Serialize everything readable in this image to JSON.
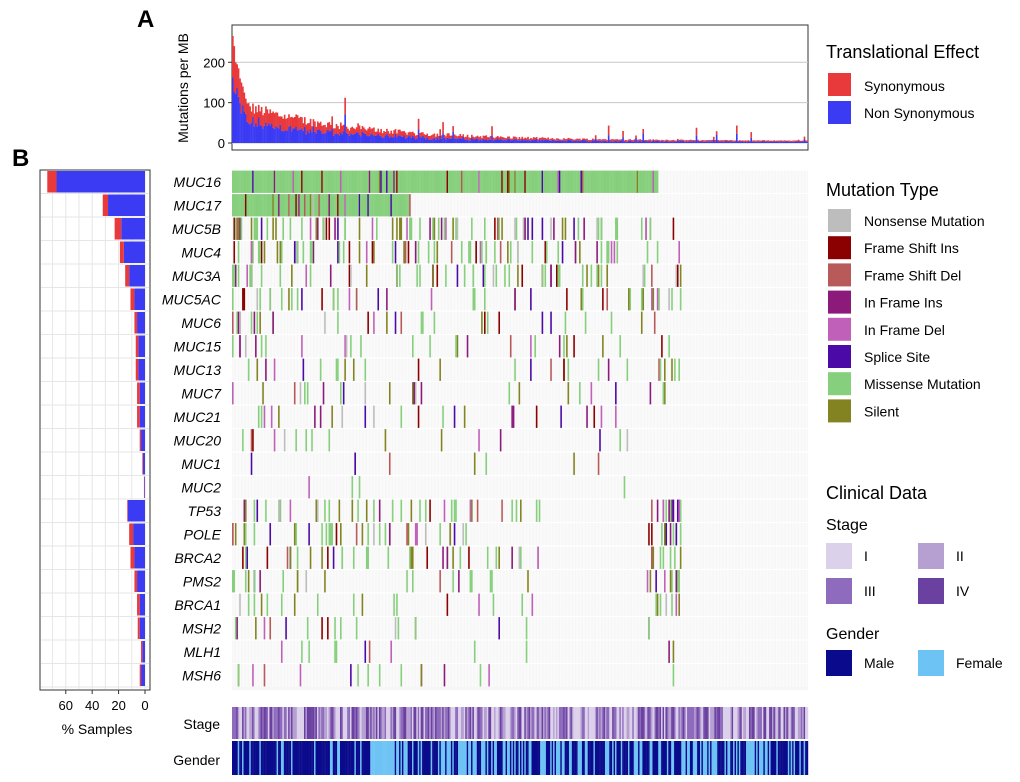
{
  "panels": {
    "a": "A",
    "b": "B"
  },
  "colors": {
    "synonymous": "#e8393b",
    "non_synonymous": "#3b3bf3",
    "nonsense": "#bdbdbd",
    "frame_shift_ins": "#8b0000",
    "frame_shift_del": "#b85a5a",
    "in_frame_ins": "#8b1a7a",
    "in_frame_del": "#c060b8",
    "splice_site": "#4b0aa8",
    "missense": "#86cf7c",
    "silent": "#838321",
    "stage_i": "#dcd1ea",
    "stage_ii": "#b6a0d2",
    "stage_iii": "#8e6bbd",
    "stage_iv": "#6a40a0",
    "male": "#0a0a8c",
    "female": "#6ec3f5",
    "grid": "#e6e6e6"
  },
  "chart_data": [
    {
      "type": "bar",
      "name": "mutation-burden",
      "title": "",
      "ylabel": "Mutations per MB",
      "ylim": [
        0,
        280
      ],
      "yticks": [
        "0",
        "100",
        "200"
      ],
      "ytick_values": [
        0,
        100,
        200
      ],
      "legend_title": "Translational Effect",
      "series": [
        {
          "name": "Synonymous",
          "color_key": "synonymous"
        },
        {
          "name": "Non Synonymous",
          "color_key": "non_synonymous"
        }
      ],
      "samples_note": "approx. 400 samples sorted by decreasing burden; top values ~265, ~240, ~200, ~195 then decaying to ~5",
      "peak_values": [
        265,
        240,
        200,
        195,
        185,
        160,
        150,
        140,
        125,
        110
      ],
      "tail_value": 5
    },
    {
      "type": "bar",
      "name": "percent-samples",
      "orientation": "horizontal",
      "xlabel": "% Samples",
      "xticks": [
        "60",
        "40",
        "20",
        "0"
      ],
      "xtick_values": [
        60,
        40,
        20,
        0
      ],
      "xlim": [
        0,
        78
      ],
      "genes": [
        "MUC16",
        "MUC17",
        "MUC5B",
        "MUC4",
        "MUC3A",
        "MUC5AC",
        "MUC6",
        "MUC15",
        "MUC13",
        "MUC7",
        "MUC21",
        "MUC20",
        "MUC1",
        "MUC2",
        "TP53",
        "POLE",
        "BRCA2",
        "PMS2",
        "BRCA1",
        "MSH2",
        "MLH1",
        "MSH6"
      ],
      "synonymous_pct": [
        7,
        4,
        5,
        3,
        3,
        3,
        2,
        2,
        2,
        2,
        2,
        1,
        0.5,
        0.3,
        0.5,
        3,
        3,
        2,
        2,
        1.5,
        1,
        1
      ],
      "non_synonymous_pct": [
        67,
        28,
        18,
        16,
        12,
        8,
        6,
        5,
        5,
        4,
        4,
        3,
        1.5,
        0.5,
        13,
        9,
        8,
        6,
        4,
        4,
        2,
        3
      ]
    },
    {
      "type": "heatmap",
      "name": "oncoprint",
      "genes": [
        "MUC16",
        "MUC17",
        "MUC5B",
        "MUC4",
        "MUC3A",
        "MUC5AC",
        "MUC6",
        "MUC15",
        "MUC13",
        "MUC7",
        "MUC21",
        "MUC20",
        "MUC1",
        "MUC2",
        "TP53",
        "POLE",
        "BRCA2",
        "PMS2",
        "BRCA1",
        "MSH2",
        "MLH1",
        "MSH6"
      ],
      "mutated_fraction": [
        0.74,
        0.31,
        0.22,
        0.19,
        0.15,
        0.11,
        0.08,
        0.07,
        0.07,
        0.06,
        0.06,
        0.04,
        0.02,
        0.01,
        0.13,
        0.12,
        0.11,
        0.08,
        0.06,
        0.05,
        0.03,
        0.04
      ],
      "legend_title": "Mutation Type",
      "categories": [
        {
          "name": "Nonsense Mutation",
          "color_key": "nonsense"
        },
        {
          "name": "Frame Shift Ins",
          "color_key": "frame_shift_ins"
        },
        {
          "name": "Frame Shift Del",
          "color_key": "frame_shift_del"
        },
        {
          "name": "In Frame Ins",
          "color_key": "in_frame_ins"
        },
        {
          "name": "In Frame Del",
          "color_key": "in_frame_del"
        },
        {
          "name": "Splice Site",
          "color_key": "splice_site"
        },
        {
          "name": "Missense Mutation",
          "color_key": "missense"
        },
        {
          "name": "Silent",
          "color_key": "silent"
        }
      ]
    },
    {
      "type": "heatmap",
      "name": "clinical-tracks",
      "tracks": [
        "Stage",
        "Gender"
      ],
      "legend_title": "Clinical Data",
      "stage_title": "Stage",
      "stage_levels": [
        {
          "name": "I",
          "color_key": "stage_i"
        },
        {
          "name": "II",
          "color_key": "stage_ii"
        },
        {
          "name": "III",
          "color_key": "stage_iii"
        },
        {
          "name": "IV",
          "color_key": "stage_iv"
        }
      ],
      "gender_title": "Gender",
      "gender_levels": [
        {
          "name": "Male",
          "color_key": "male"
        },
        {
          "name": "Female",
          "color_key": "female"
        }
      ]
    }
  ]
}
